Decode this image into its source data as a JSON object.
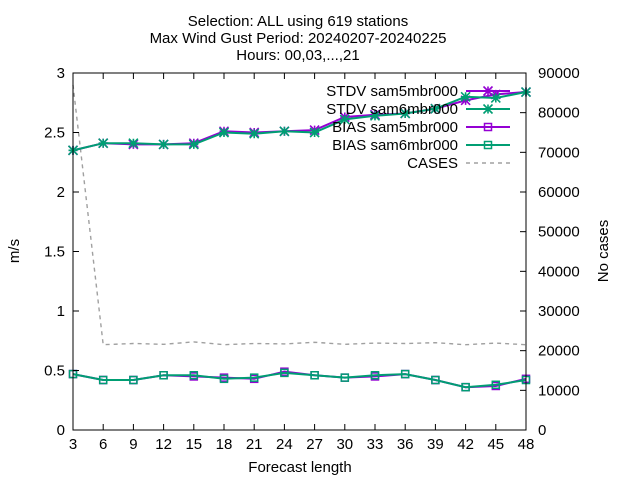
{
  "title_lines": [
    "Selection: ALL using   619 stations",
    "Max Wind Gust   Period: 20240207-20240225",
    "Hours: 00,03,...,21"
  ],
  "chart_data": {
    "type": "line",
    "xlabel": "Forecast length",
    "ylabel": "m/s",
    "y2label": "No cases",
    "x": [
      3,
      6,
      9,
      12,
      15,
      18,
      21,
      24,
      27,
      30,
      33,
      36,
      39,
      42,
      45,
      48
    ],
    "xlim": [
      3,
      48
    ],
    "ylim": [
      0,
      3
    ],
    "y2lim": [
      0,
      90000
    ],
    "x_ticks": [
      "3",
      "6",
      "9",
      "12",
      "15",
      "18",
      "21",
      "24",
      "27",
      "30",
      "33",
      "36",
      "39",
      "42",
      "45",
      "48"
    ],
    "y_ticks": [
      "0",
      "0.5",
      "1",
      "1.5",
      "2",
      "2.5",
      "3"
    ],
    "y2_ticks": [
      "0",
      "10000",
      "20000",
      "30000",
      "40000",
      "50000",
      "60000",
      "70000",
      "80000",
      "90000"
    ],
    "legend_position": "top-right",
    "series": [
      {
        "name": "STDV sam5mbr000",
        "axis": "y",
        "color": "#9400d3",
        "marker": "star",
        "dash": false,
        "values": [
          2.35,
          2.41,
          2.4,
          2.4,
          2.41,
          2.51,
          2.5,
          2.51,
          2.52,
          2.63,
          2.65,
          2.66,
          2.7,
          2.77,
          2.82,
          2.84
        ]
      },
      {
        "name": "STDV sam6mbr000",
        "axis": "y",
        "color": "#009e73",
        "marker": "star",
        "dash": false,
        "values": [
          2.35,
          2.41,
          2.41,
          2.4,
          2.4,
          2.5,
          2.49,
          2.51,
          2.5,
          2.61,
          2.64,
          2.66,
          2.7,
          2.8,
          2.79,
          2.84
        ]
      },
      {
        "name": "BIAS sam5mbr000",
        "axis": "y",
        "color": "#9400d3",
        "marker": "square",
        "dash": false,
        "values": [
          0.47,
          0.42,
          0.42,
          0.46,
          0.45,
          0.44,
          0.43,
          0.49,
          0.46,
          0.44,
          0.45,
          0.47,
          0.42,
          0.36,
          0.37,
          0.43
        ]
      },
      {
        "name": "BIAS sam6mbr000",
        "axis": "y",
        "color": "#009e73",
        "marker": "square",
        "dash": false,
        "values": [
          0.47,
          0.42,
          0.42,
          0.46,
          0.46,
          0.43,
          0.44,
          0.48,
          0.46,
          0.44,
          0.46,
          0.47,
          0.42,
          0.36,
          0.38,
          0.42
        ]
      },
      {
        "name": "CASES",
        "axis": "y2",
        "color": "#a0a0a0",
        "marker": "none",
        "dash": true,
        "values": [
          87000,
          21500,
          21800,
          21600,
          22200,
          21500,
          21800,
          21700,
          22100,
          21600,
          21900,
          21800,
          22000,
          21500,
          21900,
          21500
        ]
      }
    ]
  }
}
